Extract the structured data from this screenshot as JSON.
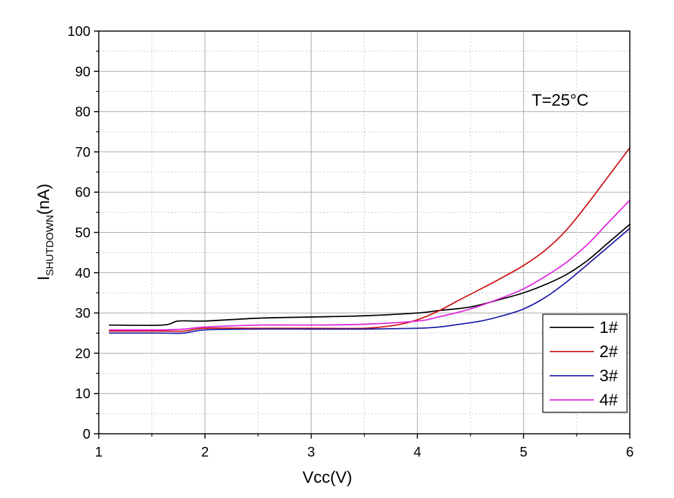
{
  "chart_data": {
    "type": "line",
    "title": "",
    "xlabel": "Vcc(V)",
    "ylabel": {
      "main": "I",
      "subscript": "SHUTDOWN",
      "unit": "(nA)"
    },
    "xlim": [
      1,
      6
    ],
    "ylim": [
      0,
      100
    ],
    "x_ticks": [
      1,
      2,
      3,
      4,
      5,
      6
    ],
    "y_ticks": [
      0,
      10,
      20,
      30,
      40,
      50,
      60,
      70,
      80,
      90,
      100
    ],
    "grid": true,
    "annotation": "T=25°C",
    "legend_position": "bottom-right",
    "series": [
      {
        "name": "1#",
        "color": "#000000",
        "x": [
          1.1,
          1.6,
          1.75,
          2.0,
          2.5,
          3.0,
          3.5,
          4.0,
          4.2,
          4.5,
          4.8,
          5.0,
          5.2,
          5.4,
          5.6,
          5.8,
          6.0
        ],
        "y": [
          27,
          27,
          28,
          28,
          28.7,
          29,
          29.3,
          30,
          30.6,
          31.5,
          33.5,
          35,
          37,
          39.5,
          43,
          47.5,
          52
        ]
      },
      {
        "name": "2#",
        "color": "#cc1111",
        "x": [
          1.1,
          1.6,
          1.8,
          2.0,
          2.5,
          3.0,
          3.5,
          3.8,
          4.0,
          4.2,
          4.4,
          4.6,
          4.8,
          5.0,
          5.2,
          5.4,
          5.6,
          5.8,
          6.0
        ],
        "y": [
          25.5,
          25.5,
          25.5,
          26.2,
          26.2,
          26.2,
          26.2,
          27,
          28.3,
          30.5,
          33.3,
          36,
          38.8,
          41.8,
          45.5,
          50.5,
          57,
          64,
          71
        ]
      },
      {
        "name": "3#",
        "color": "#1a1aa8",
        "x": [
          1.1,
          1.6,
          1.8,
          2.0,
          2.5,
          3.0,
          3.5,
          4.0,
          4.2,
          4.4,
          4.6,
          4.8,
          5.0,
          5.2,
          5.4,
          5.6,
          5.8,
          6.0
        ],
        "y": [
          25,
          25,
          25,
          25.8,
          26,
          26,
          26,
          26.2,
          26.5,
          27.2,
          28,
          29.3,
          31,
          33.8,
          37.6,
          42,
          46.5,
          51
        ]
      },
      {
        "name": "4#",
        "color": "#dd22dd",
        "x": [
          1.1,
          1.6,
          1.8,
          2.0,
          2.5,
          3.0,
          3.5,
          4.0,
          4.2,
          4.5,
          4.8,
          5.0,
          5.2,
          5.4,
          5.6,
          5.8,
          6.0
        ],
        "y": [
          25.8,
          25.8,
          26,
          26.5,
          27,
          27,
          27.2,
          28,
          29,
          31,
          33.8,
          36,
          39,
          42.5,
          47,
          52.5,
          58
        ]
      }
    ]
  }
}
